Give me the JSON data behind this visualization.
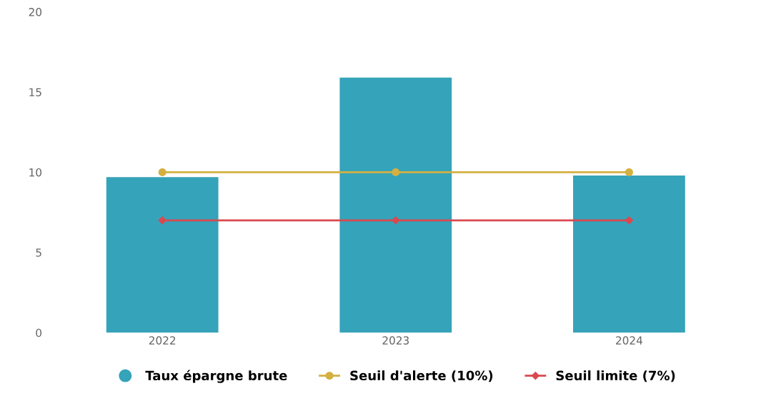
{
  "chart_data": {
    "type": "bar",
    "categories": [
      "2022",
      "2023",
      "2024"
    ],
    "ylim": [
      0,
      20
    ],
    "yticks": [
      0,
      5,
      10,
      15,
      20
    ],
    "grid": false,
    "legend": "bottom",
    "series": [
      {
        "name": "Taux épargne brute",
        "color": "#35a3b9",
        "values": [
          9.7,
          15.9,
          9.8
        ]
      },
      {
        "name": "Seuil d'alerte (10%)",
        "type": "line",
        "color": "#d4b041",
        "marker": "circle",
        "values": [
          10,
          10,
          10
        ]
      },
      {
        "name": "Seuil limite (7%)",
        "type": "line",
        "color": "#d9494f",
        "marker": "diamond",
        "values": [
          7,
          7,
          7
        ]
      }
    ]
  }
}
